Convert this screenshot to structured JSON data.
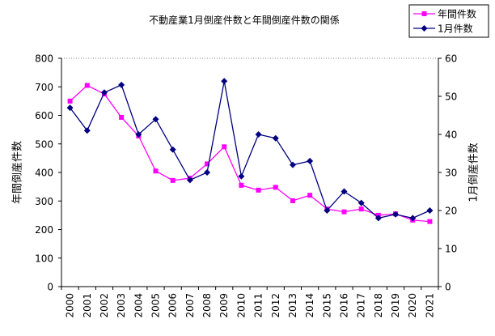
{
  "chart_data": {
    "type": "line",
    "title": "不動産業1月倒産件数と年間倒産件数の関係",
    "x": [
      "2000",
      "2001",
      "2002",
      "2003",
      "2004",
      "2005",
      "2006",
      "2007",
      "2008",
      "2009",
      "2010",
      "2011",
      "2012",
      "2013",
      "2014",
      "2015",
      "2016",
      "2017",
      "2018",
      "2019",
      "2020",
      "2021"
    ],
    "series": [
      {
        "name": "年間件数",
        "axis": "left",
        "color": "#FF00FF",
        "marker": "square",
        "values": [
          650,
          705,
          675,
          593,
          528,
          405,
          372,
          380,
          430,
          490,
          355,
          338,
          348,
          301,
          320,
          272,
          262,
          272,
          250,
          255,
          233,
          228
        ]
      },
      {
        "name": "1月件数",
        "axis": "right",
        "color": "#000080",
        "marker": "diamond",
        "values": [
          47,
          41,
          51,
          53,
          40,
          44,
          36,
          28,
          30,
          54,
          29,
          40,
          39,
          32,
          33,
          20,
          25,
          22,
          18,
          19,
          18,
          20
        ]
      }
    ],
    "ylabel": "年間倒産件数",
    "y2label": "1月倒産件数",
    "ylim": [
      0,
      800
    ],
    "y2lim": [
      0,
      60
    ],
    "yticks": [
      0,
      100,
      200,
      300,
      400,
      500,
      600,
      700,
      800
    ],
    "y2ticks": [
      0,
      10,
      20,
      30,
      40,
      50,
      60
    ],
    "legend": "top-right",
    "grid": false
  }
}
